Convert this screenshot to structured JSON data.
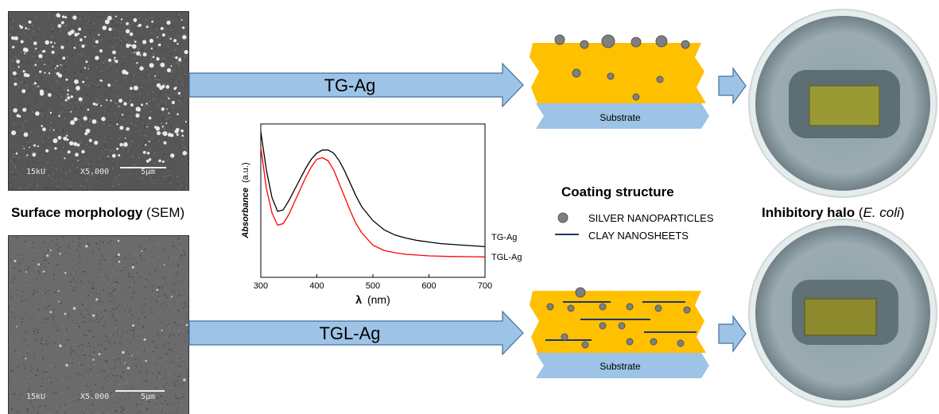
{
  "sem": {
    "title_bold": "Surface morphology",
    "title_plain": "(SEM)",
    "top_info": {
      "kv": "15kU",
      "mag": "X5.000",
      "scale": "5µm"
    },
    "bottom_info": {
      "kv": "15kU",
      "mag": "X5.000",
      "scale": "5µm"
    }
  },
  "arrows": {
    "top_label": "TG-Ag",
    "bottom_label": "TGL-Ag"
  },
  "coating": {
    "title": "Coating structure",
    "legend_particles": "SILVER NANOPARTICLES",
    "legend_sheets": "CLAY NANOSHEETS",
    "substrate_label": "Substrate",
    "colors": {
      "coating": "#ffc000",
      "substrate": "#9dc3e6",
      "particle": "#7f7f7f",
      "sheet": "#1f3864",
      "arrow": "#9dc3e6"
    }
  },
  "halo": {
    "title_bold": "Inhibitory halo",
    "title_open": "(",
    "title_italic": "E. coli",
    "title_close": ")"
  },
  "chart_data": {
    "type": "line",
    "xlabel_symbol": "λ",
    "xlabel_unit": "(nm)",
    "ylabel_italic": "Absorbance",
    "ylabel_unit": "(a.u.)",
    "xlim": [
      300,
      700
    ],
    "ylim": [
      0,
      1
    ],
    "xticks": [
      300,
      400,
      500,
      600,
      700
    ],
    "series": [
      {
        "name": "TG-Ag",
        "color": "#000000",
        "x": [
          300,
          310,
          320,
          330,
          340,
          350,
          360,
          370,
          380,
          390,
          400,
          410,
          420,
          430,
          440,
          450,
          460,
          470,
          480,
          500,
          520,
          540,
          560,
          580,
          600,
          620,
          640,
          660,
          680,
          700
        ],
        "y": [
          0.95,
          0.7,
          0.52,
          0.43,
          0.44,
          0.5,
          0.57,
          0.64,
          0.71,
          0.77,
          0.81,
          0.83,
          0.83,
          0.81,
          0.76,
          0.69,
          0.61,
          0.53,
          0.46,
          0.37,
          0.31,
          0.275,
          0.255,
          0.24,
          0.23,
          0.22,
          0.215,
          0.21,
          0.205,
          0.2
        ]
      },
      {
        "name": "TGL-Ag",
        "color": "#ff0000",
        "x": [
          300,
          310,
          320,
          330,
          340,
          350,
          360,
          370,
          380,
          390,
          400,
          410,
          420,
          430,
          440,
          450,
          460,
          470,
          480,
          500,
          520,
          540,
          560,
          580,
          600,
          620,
          640,
          660,
          680,
          700
        ],
        "y": [
          0.85,
          0.58,
          0.42,
          0.34,
          0.35,
          0.41,
          0.49,
          0.57,
          0.65,
          0.72,
          0.77,
          0.78,
          0.76,
          0.7,
          0.61,
          0.52,
          0.43,
          0.35,
          0.29,
          0.21,
          0.175,
          0.16,
          0.15,
          0.145,
          0.14,
          0.138,
          0.136,
          0.135,
          0.134,
          0.133
        ]
      }
    ]
  }
}
